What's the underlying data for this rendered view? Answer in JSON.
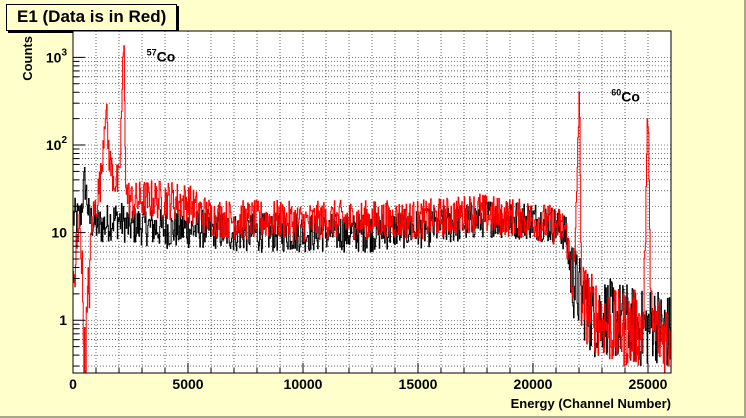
{
  "title": "E1 (Data is in Red)",
  "colors": {
    "background": "#ffffcc",
    "plot_bg": "#ffffff",
    "data": "#ff0000",
    "reference": "#000000"
  },
  "chart_data": {
    "type": "line",
    "title": "E1 (Data is in Red)",
    "xlabel": "Energy (Channel Number)",
    "ylabel": "Counts",
    "xlim": [
      0,
      26000
    ],
    "ylim": [
      0.25,
      2000
    ],
    "yscale": "log",
    "grid": true,
    "x_ticks": [
      {
        "value": 0,
        "label": "0"
      },
      {
        "value": 5000,
        "label": "5000"
      },
      {
        "value": 10000,
        "label": "10000"
      },
      {
        "value": 15000,
        "label": "15000"
      },
      {
        "value": 20000,
        "label": "20000"
      },
      {
        "value": 25000,
        "label": "25000"
      }
    ],
    "y_ticks": [
      {
        "value": 1,
        "label": "1"
      },
      {
        "value": 10,
        "label": "10"
      },
      {
        "value": 100,
        "base": "10",
        "exp": "2"
      },
      {
        "value": 1000,
        "base": "10",
        "exp": "3"
      }
    ],
    "annotations": [
      {
        "iso": "57",
        "elem": "Co",
        "x": 3200,
        "y": 1000
      },
      {
        "iso": "60",
        "elem": "Co",
        "x": 23400,
        "y": 350
      }
    ],
    "series": [
      {
        "color": "#ff0000",
        "x": [
          0,
          300,
          500,
          700,
          800,
          1000,
          1200,
          1400,
          1500,
          1600,
          1800,
          2000,
          2200,
          2300,
          2400,
          2600,
          3000,
          3500,
          4000,
          4500,
          5000,
          5500,
          6000,
          7000,
          8000,
          9000,
          10000,
          11000,
          12000,
          13000,
          14000,
          15000,
          16000,
          17000,
          17600,
          18000,
          19000,
          20000,
          21000,
          21400,
          21600,
          21800,
          22000,
          22100,
          22300,
          22600,
          23000,
          23500,
          24000,
          24500,
          24800,
          25000,
          25100,
          25300,
          25600,
          26000
        ],
        "y": [
          2,
          16,
          0.3,
          3,
          12,
          22,
          40,
          300,
          120,
          60,
          40,
          35,
          1500,
          30,
          25,
          22,
          24,
          24,
          24,
          23,
          22,
          17,
          15,
          14,
          14,
          14,
          13,
          14,
          14,
          14,
          14,
          14,
          15,
          16,
          18,
          16,
          15,
          14,
          12,
          11,
          5,
          3,
          450,
          2,
          1.5,
          1.2,
          1,
          0.8,
          0.8,
          0.8,
          0.9,
          420,
          1,
          0.8,
          0.7,
          0.7
        ]
      },
      {
        "color": "#000000",
        "x": [
          0,
          300,
          500,
          700,
          900,
          1100,
          1300,
          1500,
          1700,
          2000,
          2200,
          2400,
          3000,
          4000,
          5000,
          6000,
          7000,
          8000,
          9000,
          10000,
          11000,
          12000,
          13000,
          14000,
          15000,
          16000,
          17000,
          18000,
          19000,
          20000,
          21000,
          21400,
          21700,
          22000,
          22300,
          22600,
          23000,
          23500,
          24000,
          24500,
          25000,
          25200,
          25600,
          26000
        ],
        "y": [
          15,
          14,
          40,
          14,
          13,
          12,
          12,
          13,
          14,
          14,
          13,
          12,
          12,
          11,
          11,
          11,
          10,
          10,
          10,
          10,
          10,
          10,
          10,
          11,
          11,
          12,
          13,
          15,
          14,
          14,
          12,
          10,
          3,
          2,
          1.5,
          1,
          1.2,
          1,
          1,
          0.8,
          0.8,
          1,
          0.8,
          0.7
        ]
      }
    ]
  }
}
